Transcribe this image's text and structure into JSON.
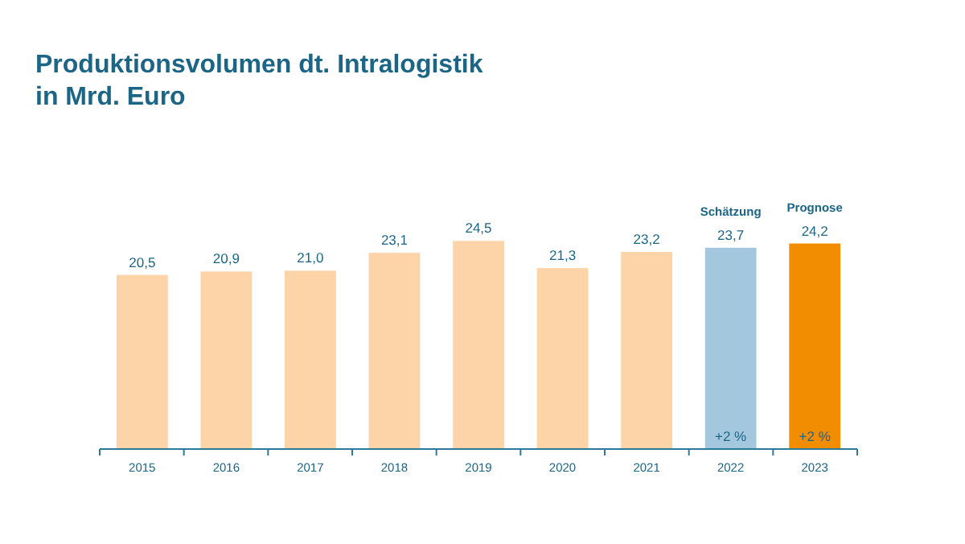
{
  "chart_data": {
    "type": "bar",
    "title": "Produktionsvolumen dt. Intralogistik\nin Mrd. Euro",
    "categories": [
      "2015",
      "2016",
      "2017",
      "2018",
      "2019",
      "2020",
      "2021",
      "2022",
      "2023"
    ],
    "values": [
      20.5,
      20.9,
      21.0,
      23.1,
      24.5,
      21.3,
      23.2,
      23.7,
      24.2
    ],
    "colors": [
      "#fdd3a8",
      "#fdd3a8",
      "#fdd3a8",
      "#fdd3a8",
      "#fdd3a8",
      "#fdd3a8",
      "#fdd3a8",
      "#a3c8dd",
      "#f28c00"
    ],
    "value_labels": [
      "20,5",
      "20,9",
      "21,0",
      "23,1",
      "24,5",
      "21,3",
      "23,2",
      "23,7",
      "24,2"
    ],
    "annotations": [
      {
        "text": "Schätzung",
        "x": "2022",
        "y": 23.7
      },
      {
        "text": "Prognose",
        "x": "2023",
        "y": 24.2
      },
      {
        "text": "+2 %",
        "x": "2022",
        "y": 0
      },
      {
        "text": "+2 %",
        "x": "2023",
        "y": 0
      }
    ],
    "data_labels": true
  }
}
